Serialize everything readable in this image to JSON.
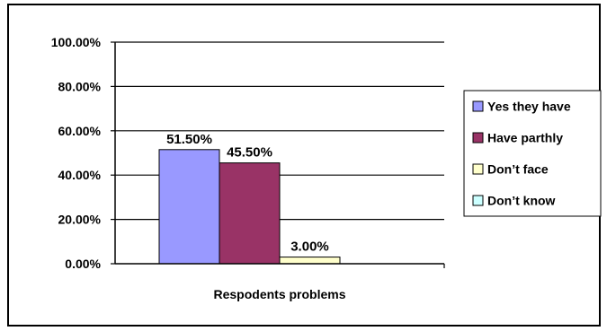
{
  "chart_data": {
    "type": "bar",
    "title": "",
    "xlabel": "Respodents problems",
    "ylabel": "",
    "ylim": [
      0,
      100
    ],
    "yticks": [
      "0.00%",
      "20.00%",
      "40.00%",
      "60.00%",
      "80.00%",
      "100.00%"
    ],
    "grid": true,
    "legend_position": "right",
    "series": [
      {
        "name": "Yes they have",
        "value": 51.5,
        "label": "51.50%",
        "color": "#9999ff"
      },
      {
        "name": "Have parthly",
        "value": 45.5,
        "label": "45.50%",
        "color": "#993366"
      },
      {
        "name": "Don’t face",
        "value": 3.0,
        "label": "3.00%",
        "color": "#ffffcc"
      },
      {
        "name": "Don’t know",
        "value": 0.0,
        "label": "",
        "color": "#ccffff"
      }
    ]
  }
}
